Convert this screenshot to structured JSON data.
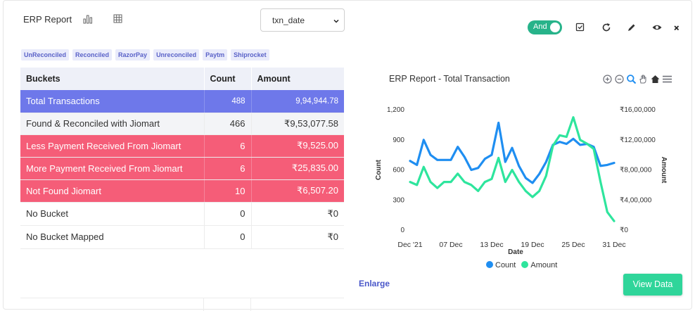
{
  "header": {
    "title": "ERP Report",
    "select_value": "txn_date",
    "toggle_label": "And"
  },
  "chips": [
    "UnReconciled",
    "Reconciled",
    "RazorPay",
    "Unreconciled",
    "Paytm",
    "Shiprocket"
  ],
  "table": {
    "headers": [
      "Buckets",
      "Count",
      "Amount"
    ],
    "rows": [
      {
        "bucket": "Total  Transactions",
        "count": "488",
        "amount": "9,94,944.78",
        "style": "total"
      },
      {
        "bucket": "Found & Reconciled with Jiomart",
        "count": "466",
        "amount": "₹9,53,077.58",
        "style": "recon"
      },
      {
        "bucket": "Less Payment Received From Jiomart",
        "count": "6",
        "amount": "₹9,525.00",
        "style": "red"
      },
      {
        "bucket": "More Payment Received From Jiomart",
        "count": "6",
        "amount": "₹25,835.00",
        "style": "red"
      },
      {
        "bucket": "Not Found Jiomart",
        "count": "10",
        "amount": "₹6,507.20",
        "style": "red"
      },
      {
        "bucket": "No Bucket",
        "count": "0",
        "amount": "₹0",
        "style": "plain"
      },
      {
        "bucket": "No Bucket Mapped",
        "count": "0",
        "amount": "₹0",
        "style": "plain"
      }
    ]
  },
  "chart_data": {
    "type": "line",
    "title": "ERP Report - Total Transaction",
    "xlabel": "Date",
    "ylabel": "Count",
    "y2label": "Amount",
    "x_ticks": [
      "Dec '21",
      "07 Dec",
      "13 Dec",
      "19 Dec",
      "25 Dec",
      "31 Dec"
    ],
    "y_ticks": [
      "0",
      "300",
      "600",
      "900",
      "1,200"
    ],
    "y2_ticks": [
      "₹0",
      "₹4,00,000",
      "₹8,00,000",
      "₹12,00,000",
      "₹16,00,000"
    ],
    "ylim": [
      0,
      1200
    ],
    "y2lim": [
      0,
      1600000
    ],
    "x": [
      "01 Dec",
      "02 Dec",
      "03 Dec",
      "04 Dec",
      "05 Dec",
      "06 Dec",
      "07 Dec",
      "08 Dec",
      "09 Dec",
      "10 Dec",
      "11 Dec",
      "12 Dec",
      "13 Dec",
      "14 Dec",
      "15 Dec",
      "16 Dec",
      "17 Dec",
      "18 Dec",
      "19 Dec",
      "20 Dec",
      "21 Dec",
      "22 Dec",
      "23 Dec",
      "24 Dec",
      "25 Dec",
      "26 Dec",
      "27 Dec",
      "28 Dec",
      "29 Dec",
      "30 Dec",
      "31 Dec"
    ],
    "series": [
      {
        "name": "Count",
        "color": "#1f8ef1",
        "axis": "left",
        "values": [
          690,
          650,
          900,
          750,
          700,
          700,
          700,
          830,
          730,
          600,
          620,
          710,
          750,
          1070,
          680,
          820,
          640,
          520,
          470,
          560,
          680,
          850,
          880,
          860,
          910,
          850,
          860,
          830,
          640,
          650,
          670
        ]
      },
      {
        "name": "Amount",
        "color": "#2ee59d",
        "axis": "right",
        "values": [
          640000,
          600000,
          840000,
          640000,
          560000,
          640000,
          640000,
          750000,
          640000,
          600000,
          520000,
          640000,
          680000,
          960000,
          640000,
          800000,
          640000,
          520000,
          440000,
          520000,
          720000,
          1120000,
          1260000,
          1240000,
          1500000,
          1200000,
          1150000,
          1080000,
          640000,
          240000,
          120000
        ]
      }
    ],
    "legend_position": "bottom"
  },
  "footer": {
    "enlarge_label": "Enlarge",
    "view_data_label": "View Data"
  }
}
